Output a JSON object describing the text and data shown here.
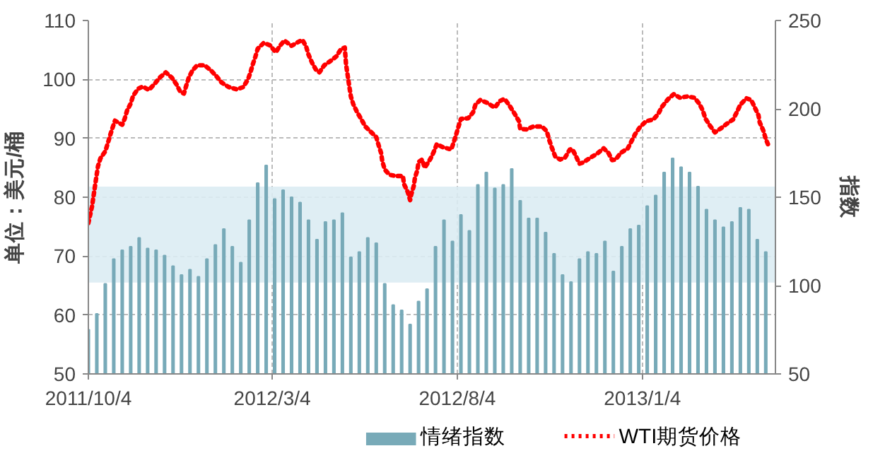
{
  "chart_data": {
    "type": "line",
    "ylabel": "单位：美元/桶",
    "y2label": "指数",
    "xlim": [
      "2011-10-04",
      "2013-04-24"
    ],
    "xticks": [
      {
        "value": "2011-10-04",
        "label": "2011/10/4"
      },
      {
        "value": "2012-03-04",
        "label": "2012/3/4"
      },
      {
        "value": "2012-08-04",
        "label": "2012/8/4"
      },
      {
        "value": "2013-01-04",
        "label": "2013/1/4"
      }
    ],
    "ylim": [
      50,
      110
    ],
    "yticks": [
      50,
      60,
      70,
      80,
      90,
      100,
      110
    ],
    "y2lim": [
      50,
      250
    ],
    "y2ticks": [
      50,
      100,
      150,
      200,
      250
    ],
    "grid": true,
    "legend": "bottom",
    "bands": [
      {
        "axis": "y",
        "from": 65.5,
        "to": 81.8,
        "color": "#dbecf3"
      }
    ],
    "series": [
      {
        "name": "情绪指数",
        "type": "bar",
        "axis": "y2",
        "color": "#78aab8",
        "x": [
          "2011-10-04",
          "2011-10-11",
          "2011-10-18",
          "2011-10-25",
          "2011-11-01",
          "2011-11-08",
          "2011-11-15",
          "2011-11-22",
          "2011-11-29",
          "2011-12-06",
          "2011-12-13",
          "2011-12-20",
          "2011-12-27",
          "2012-01-03",
          "2012-01-10",
          "2012-01-17",
          "2012-01-24",
          "2012-01-31",
          "2012-02-07",
          "2012-02-14",
          "2012-02-21",
          "2012-02-28",
          "2012-03-06",
          "2012-03-13",
          "2012-03-20",
          "2012-03-27",
          "2012-04-03",
          "2012-04-10",
          "2012-04-17",
          "2012-04-24",
          "2012-05-01",
          "2012-05-08",
          "2012-05-15",
          "2012-05-22",
          "2012-05-29",
          "2012-06-05",
          "2012-06-12",
          "2012-06-19",
          "2012-06-26",
          "2012-07-03",
          "2012-07-10",
          "2012-07-17",
          "2012-07-24",
          "2012-07-31",
          "2012-08-07",
          "2012-08-14",
          "2012-08-21",
          "2012-08-28",
          "2012-09-04",
          "2012-09-11",
          "2012-09-18",
          "2012-09-25",
          "2012-10-02",
          "2012-10-09",
          "2012-10-16",
          "2012-10-23",
          "2012-10-30",
          "2012-11-06",
          "2012-11-13",
          "2012-11-20",
          "2012-11-27",
          "2012-12-04",
          "2012-12-11",
          "2012-12-18",
          "2012-12-25",
          "2013-01-01",
          "2013-01-08",
          "2013-01-15",
          "2013-01-22",
          "2013-01-29",
          "2013-02-05",
          "2013-02-12",
          "2013-02-19",
          "2013-02-26",
          "2013-03-05",
          "2013-03-12",
          "2013-03-19",
          "2013-03-26",
          "2013-04-02",
          "2013-04-09",
          "2013-04-16"
        ],
        "values": [
          75,
          84,
          101,
          115,
          120,
          122,
          127,
          121,
          120,
          117,
          111,
          106,
          109,
          105,
          115,
          123,
          132,
          122,
          113,
          137,
          158,
          168,
          149,
          154,
          150,
          147,
          137,
          126,
          136,
          137,
          141,
          116,
          119,
          127,
          124,
          101,
          89,
          86,
          78,
          91,
          98,
          122,
          137,
          125,
          140,
          131,
          157,
          164,
          155,
          157,
          166,
          148,
          138,
          138,
          130,
          118,
          106,
          102,
          115,
          119,
          118,
          125,
          108,
          122,
          132,
          134,
          145,
          151,
          164,
          172,
          167,
          164,
          156,
          143,
          137,
          133,
          136,
          144,
          143,
          126,
          119
        ]
      },
      {
        "name": "WTI期货价格",
        "color": "#ff0000",
        "line_style": "dotted",
        "x": [
          "2011-10-04",
          "2011-10-07",
          "2011-10-09",
          "2011-10-11",
          "2011-10-12",
          "2011-10-14",
          "2011-10-18",
          "2011-10-20",
          "2011-10-22",
          "2011-10-24",
          "2011-10-26",
          "2011-11-01",
          "2011-11-03",
          "2011-11-05",
          "2011-11-08",
          "2011-11-10",
          "2011-11-14",
          "2011-11-18",
          "2011-11-23",
          "2011-11-28",
          "2011-12-02",
          "2011-12-07",
          "2011-12-12",
          "2011-12-16",
          "2011-12-19",
          "2011-12-22",
          "2011-12-24",
          "2011-12-26",
          "2011-12-29",
          "2012-01-02",
          "2012-01-08",
          "2012-01-13",
          "2012-01-18",
          "2012-01-22",
          "2012-01-28",
          "2012-02-04",
          "2012-02-09",
          "2012-02-13",
          "2012-02-15",
          "2012-02-17",
          "2012-02-19",
          "2012-02-21",
          "2012-02-26",
          "2012-03-02",
          "2012-03-07",
          "2012-03-10",
          "2012-03-14",
          "2012-03-20",
          "2012-03-25",
          "2012-03-29",
          "2012-04-01",
          "2012-04-03",
          "2012-04-06",
          "2012-04-09",
          "2012-04-12",
          "2012-04-16",
          "2012-04-21",
          "2012-04-26",
          "2012-04-30",
          "2012-05-03",
          "2012-05-04",
          "2012-05-06",
          "2012-05-08",
          "2012-05-10",
          "2012-05-13",
          "2012-05-17",
          "2012-05-20",
          "2012-05-25",
          "2012-05-29",
          "2012-05-31",
          "2012-06-02",
          "2012-06-03",
          "2012-06-05",
          "2012-06-09",
          "2012-06-14",
          "2012-06-20",
          "2012-06-21",
          "2012-06-24",
          "2012-06-26",
          "2012-06-27",
          "2012-06-29",
          "2012-06-30",
          "2012-07-02",
          "2012-07-03",
          "2012-07-06",
          "2012-07-08",
          "2012-07-09",
          "2012-07-13",
          "2012-07-16",
          "2012-07-18",
          "2012-07-23",
          "2012-07-30",
          "2012-08-01",
          "2012-08-03",
          "2012-08-05",
          "2012-08-07",
          "2012-08-13",
          "2012-08-17",
          "2012-08-19",
          "2012-08-23",
          "2012-08-29",
          "2012-09-04",
          "2012-09-08",
          "2012-09-12",
          "2012-09-16",
          "2012-09-20",
          "2012-09-24",
          "2012-09-25",
          "2012-09-30",
          "2012-10-06",
          "2012-10-13",
          "2012-10-17",
          "2012-10-19",
          "2012-10-21",
          "2012-10-24",
          "2012-10-28",
          "2012-11-01",
          "2012-11-05",
          "2012-11-07",
          "2012-11-10",
          "2012-11-13",
          "2012-11-16",
          "2012-11-22",
          "2012-11-27",
          "2012-12-03",
          "2012-12-07",
          "2012-12-10",
          "2012-12-13",
          "2012-12-17",
          "2012-12-23",
          "2012-12-26",
          "2012-12-29",
          "2013-01-02",
          "2013-01-07",
          "2013-01-13",
          "2013-01-17",
          "2013-01-20",
          "2013-01-25",
          "2013-01-30",
          "2013-02-04",
          "2013-02-10",
          "2013-02-16",
          "2013-02-20",
          "2013-02-23",
          "2013-02-25",
          "2013-03-01",
          "2013-03-05",
          "2013-03-10",
          "2013-03-15",
          "2013-03-20",
          "2013-03-23",
          "2013-03-26",
          "2013-03-31",
          "2013-04-04",
          "2013-04-07",
          "2013-04-10",
          "2013-04-11",
          "2013-04-14",
          "2013-04-16",
          "2013-04-18"
        ],
        "values": [
          75.6,
          78.4,
          81.2,
          84.0,
          85.3,
          86.6,
          87.8,
          89.1,
          90.5,
          91.8,
          93.0,
          92.3,
          93.3,
          94.7,
          95.9,
          97.2,
          98.4,
          98.8,
          98.2,
          99.3,
          100.3,
          101.2,
          100.3,
          99.1,
          97.9,
          97.6,
          99.0,
          100.3,
          101.5,
          102.4,
          102.4,
          101.6,
          100.5,
          99.5,
          98.7,
          98.3,
          98.7,
          100.0,
          101.2,
          102.6,
          103.8,
          105.2,
          106.2,
          105.8,
          104.6,
          105.6,
          106.6,
          105.7,
          106.3,
          106.7,
          105.6,
          104.2,
          102.8,
          101.7,
          101.2,
          102.4,
          103.1,
          103.9,
          105.2,
          105.4,
          102.6,
          99.8,
          97.1,
          95.8,
          94.5,
          93.1,
          92.0,
          91.0,
          90.2,
          88.8,
          87.5,
          86.1,
          84.7,
          83.8,
          83.6,
          83.6,
          82.2,
          80.9,
          79.5,
          80.5,
          81.9,
          83.3,
          84.6,
          86.0,
          86.4,
          85.0,
          85.3,
          86.6,
          87.9,
          89.0,
          88.5,
          88.1,
          89.3,
          90.6,
          92.0,
          93.3,
          93.4,
          94.4,
          95.7,
          96.5,
          96.0,
          95.2,
          96.3,
          96.7,
          95.6,
          94.3,
          92.9,
          91.6,
          91.5,
          92.0,
          92.0,
          91.2,
          89.7,
          88.5,
          86.9,
          86.4,
          86.7,
          88.1,
          88.2,
          87.0,
          85.7,
          85.9,
          86.7,
          87.3,
          88.3,
          87.5,
          86.3,
          86.4,
          87.5,
          88.3,
          89.5,
          90.7,
          91.9,
          92.9,
          93.2,
          94.1,
          95.3,
          96.6,
          97.5,
          96.9,
          97.1,
          96.9,
          95.9,
          94.7,
          93.4,
          92.1,
          91.0,
          91.7,
          92.5,
          93.2,
          94.4,
          95.7,
          96.8,
          96.5,
          95.2,
          93.9,
          92.7,
          91.3,
          89.9,
          88.9
        ]
      }
    ]
  }
}
